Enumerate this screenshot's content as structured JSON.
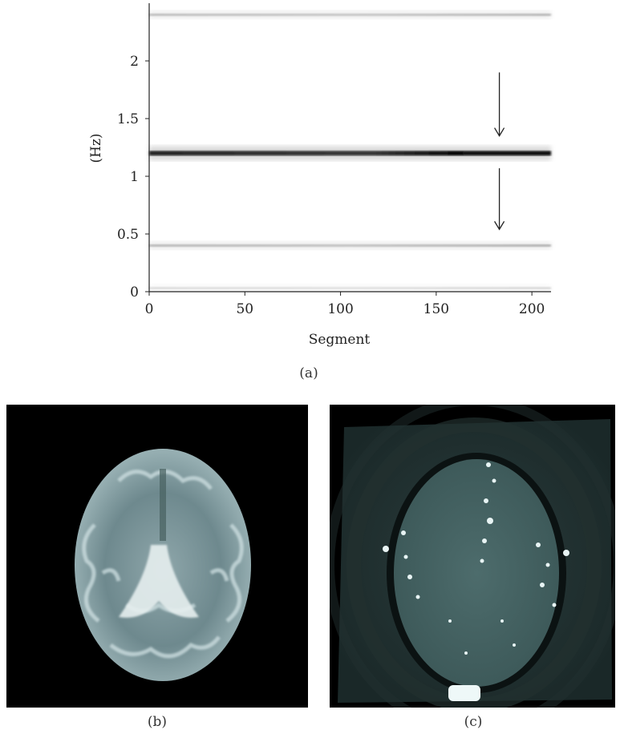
{
  "panels": {
    "a": {
      "caption": "(a)"
    },
    "b": {
      "caption": "(b)"
    },
    "c": {
      "caption": "(c)"
    }
  },
  "chart_data": {
    "type": "heatmap",
    "title": "",
    "xlabel": "Segment",
    "ylabel": "(Hz)",
    "xlim": [
      0,
      210
    ],
    "ylim": [
      0,
      2.5
    ],
    "xticks": [
      0,
      50,
      100,
      150,
      200
    ],
    "xtick_labels": [
      "0",
      "50",
      "100",
      "150",
      "200"
    ],
    "yticks": [
      0,
      0.5,
      1,
      1.5,
      2
    ],
    "ytick_labels": [
      "0",
      "0.5",
      "1",
      "1.5",
      "2"
    ],
    "grid": false,
    "spectral_lines": [
      {
        "frequency": 2.4,
        "intensity": 0.45
      },
      {
        "frequency": 1.2,
        "intensity": 1.0
      },
      {
        "frequency": 0.4,
        "intensity": 0.5
      },
      {
        "frequency": 0.03,
        "intensity": 0.15
      }
    ],
    "annotations": [
      {
        "type": "arrow-down",
        "x": 183,
        "y_from": 1.9,
        "y_to": 1.35
      },
      {
        "type": "arrow-down",
        "x": 183,
        "y_from": 1.07,
        "y_to": 0.54
      }
    ]
  },
  "images": {
    "b": {
      "content": "axial brain MRI slice, T2-weighted"
    },
    "c": {
      "content": "axial brain MRI slice, functional/noise map"
    }
  },
  "colors": {
    "line": "#111111",
    "mri_tint_b": "#bfcfd2",
    "mri_tint_c": "#7fa6a6"
  }
}
